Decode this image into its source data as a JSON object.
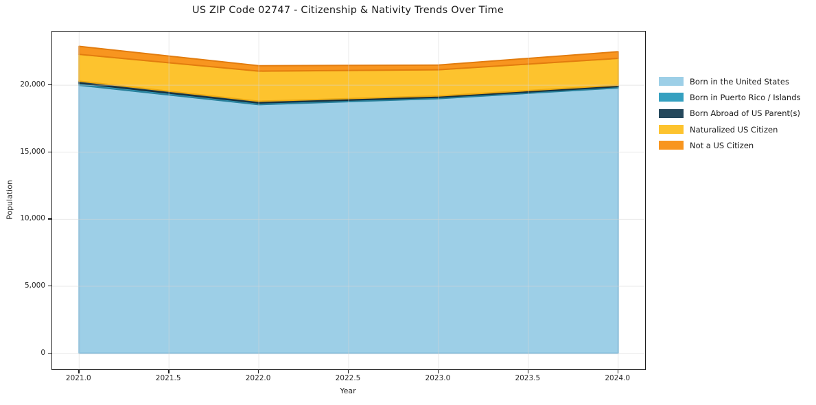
{
  "chart_data": {
    "type": "area",
    "stacked": true,
    "title": "US ZIP Code 02747 - Citizenship & Nativity Trends Over Time",
    "xlabel": "Year",
    "ylabel": "Population",
    "x": [
      2021,
      2022,
      2023,
      2024
    ],
    "series": [
      {
        "name": "Born in the United States",
        "color": "#9dcfe7",
        "edge_color": "#79b9da",
        "values": [
          20000,
          18550,
          19000,
          19800
        ]
      },
      {
        "name": "Born in Puerto Rico / Islands",
        "color": "#35a0c0",
        "edge_color": "#28809b",
        "values": [
          150,
          120,
          100,
          100
        ]
      },
      {
        "name": "Born Abroad of US Parent(s)",
        "color": "#25485c",
        "edge_color": "#16303e",
        "values": [
          150,
          130,
          100,
          100
        ]
      },
      {
        "name": "Naturalized US Citizen",
        "color": "#fdc32e",
        "edge_color": "#edaa12",
        "values": [
          2000,
          2250,
          1950,
          2000
        ]
      },
      {
        "name": "Not a US Citizen",
        "color": "#f8951f",
        "edge_color": "#e27c0e",
        "values": [
          600,
          400,
          350,
          500
        ]
      }
    ],
    "xlim": [
      2020.85,
      2024.15
    ],
    "ylim": [
      -1200,
      24000
    ],
    "xticks": {
      "values": [
        2021.0,
        2021.5,
        2022.0,
        2022.5,
        2023.0,
        2023.5,
        2024.0
      ],
      "labels": [
        "2021.0",
        "2021.5",
        "2022.0",
        "2022.5",
        "2023.0",
        "2023.5",
        "2024.0"
      ]
    },
    "yticks": {
      "values": [
        0,
        5000,
        10000,
        15000,
        20000
      ],
      "labels": [
        "0",
        "5,000",
        "10,000",
        "15,000",
        "20,000"
      ]
    },
    "grid": true,
    "grid_color": "rgba(214,214,214,0.55)",
    "spine_color": "#1c1c1c",
    "legend_position": "right-outside"
  }
}
